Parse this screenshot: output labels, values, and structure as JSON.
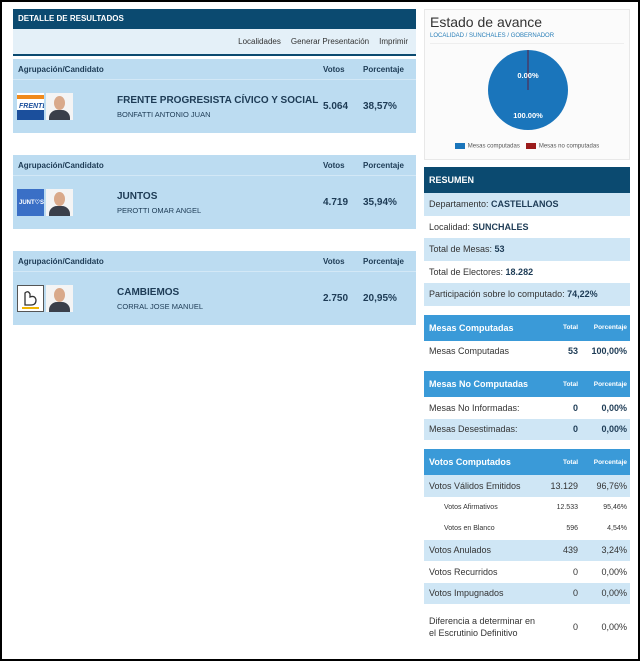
{
  "results": {
    "title": "DETALLE DE RESULTADOS",
    "toolbar": [
      "Localidades",
      "Generar Presentación",
      "Imprimir"
    ],
    "col_party": "Agrupación/Candidato",
    "col_votes": "Votos",
    "col_pct": "Porcentaje",
    "rows": [
      {
        "party": "FRENTE PROGRESISTA CÍVICO Y SOCIAL",
        "candidate": "BONFATTI ANTONIO JUAN",
        "votes": "5.064",
        "pct": "38,57%",
        "logo_text": "FRENTE",
        "logo_color": "#1b4f9c"
      },
      {
        "party": "JUNTOS",
        "candidate": "PEROTTI OMAR ANGEL",
        "votes": "4.719",
        "pct": "35,94%",
        "logo_text": "JUNT♡S",
        "logo_color": "#3a6fc6"
      },
      {
        "party": "CAMBIEMOS",
        "candidate": "CORRAL JOSE MANUEL",
        "votes": "2.750",
        "pct": "20,95%",
        "logo_text": "",
        "logo_color": "#ffffff"
      }
    ]
  },
  "avance": {
    "title": "Estado de avance",
    "breadcrumb": "LOCALIDAD / SUNCHALES / GOBERNADOR",
    "chart_data": {
      "type": "pie",
      "slices": [
        {
          "name": "Mesas computadas",
          "value": 100.0,
          "label": "100.00%",
          "color": "#1a75bb"
        },
        {
          "name": "Mesas no computadas",
          "value": 0.0,
          "label": "0.00%",
          "color": "#9b1b1b"
        }
      ],
      "legend": "bottom"
    }
  },
  "resumen": {
    "title": "RESUMEN",
    "rows": [
      {
        "label": "Departamento: ",
        "value": "CASTELLANOS"
      },
      {
        "label": "Localidad: ",
        "value": "SUNCHALES"
      },
      {
        "label": "Total de Mesas: ",
        "value": "53"
      },
      {
        "label": "Total de Electores: ",
        "value": "18.282"
      },
      {
        "label": "Participación sobre lo computado: ",
        "value": "74,22%"
      }
    ]
  },
  "mesas_computadas": {
    "title": "Mesas Computadas",
    "col_total": "Total",
    "col_pct": "Porcentaje",
    "rows": [
      {
        "label": "Mesas Computadas",
        "total": "53",
        "pct": "100,00%"
      }
    ]
  },
  "mesas_no_computadas": {
    "title": "Mesas No Computadas",
    "col_total": "Total",
    "col_pct": "Porcentaje",
    "rows": [
      {
        "label": "Mesas No Informadas:",
        "total": "0",
        "pct": "0,00%"
      },
      {
        "label": "Mesas Desestimadas:",
        "total": "0",
        "pct": "0,00%"
      }
    ]
  },
  "votos_computados": {
    "title": "Votos Computados",
    "col_total": "Total",
    "col_pct": "Porcentaje",
    "rows": [
      {
        "label": "Votos Válidos Emitidos",
        "total": "13.129",
        "pct": "96,76%"
      },
      {
        "label": "Votos Afirmativos",
        "total": "12.533",
        "pct": "95,46%"
      },
      {
        "label": "Votos en Blanco",
        "total": "596",
        "pct": "4,54%"
      },
      {
        "label": "Votos Anulados",
        "total": "439",
        "pct": "3,24%"
      },
      {
        "label": "Votos Recurridos",
        "total": "0",
        "pct": "0,00%"
      },
      {
        "label": "Votos Impugnados",
        "total": "0",
        "pct": "0,00%"
      },
      {
        "label": "Diferencia a determinar en el Escrutinio Definitivo",
        "total": "0",
        "pct": "0,00%"
      }
    ]
  }
}
